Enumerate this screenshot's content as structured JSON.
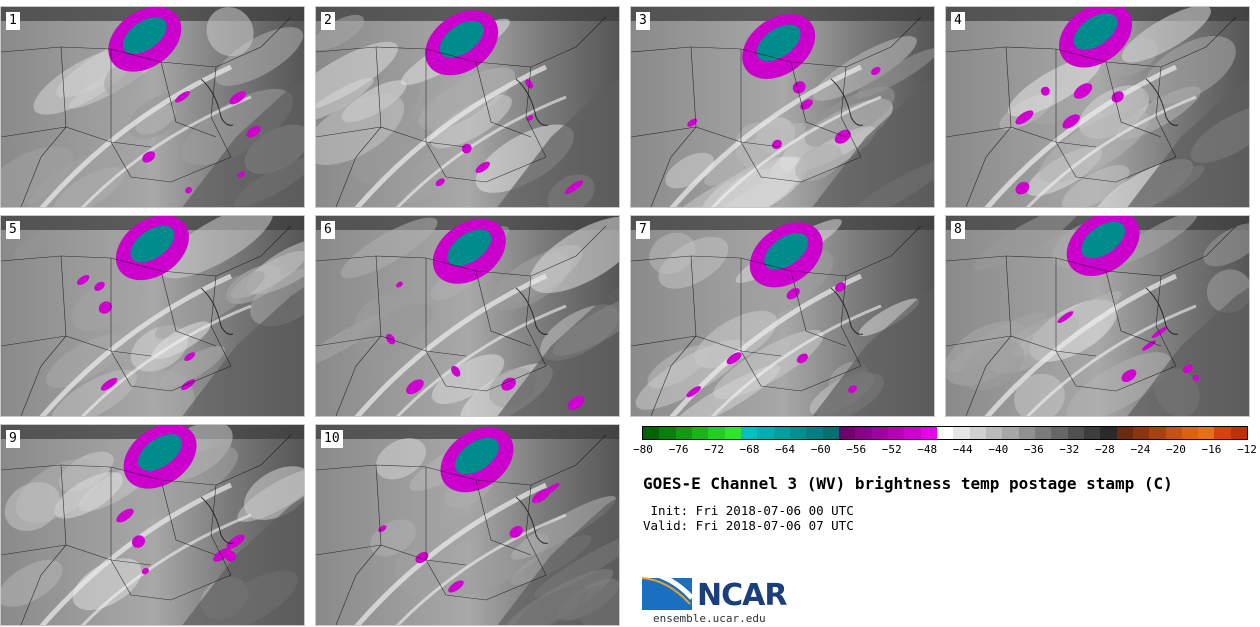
{
  "panels": [
    {
      "label": "1"
    },
    {
      "label": "2"
    },
    {
      "label": "3"
    },
    {
      "label": "4"
    },
    {
      "label": "5"
    },
    {
      "label": "6"
    },
    {
      "label": "7"
    },
    {
      "label": "8"
    },
    {
      "label": "9"
    },
    {
      "label": "10"
    }
  ],
  "colorbar": {
    "colors": [
      "#006400",
      "#087f08",
      "#109a10",
      "#18b518",
      "#20d020",
      "#28e828",
      "#00c0c0",
      "#00b0b0",
      "#00a0a0",
      "#009090",
      "#008080",
      "#007070",
      "#700070",
      "#880088",
      "#a000a0",
      "#b800b8",
      "#d000d0",
      "#e800e8",
      "#ffffff",
      "#e6e6e6",
      "#d0d0d0",
      "#bbbbbb",
      "#a6a6a6",
      "#909090",
      "#7b7b7b",
      "#666666",
      "#505050",
      "#3d3d3d",
      "#2a2a2a",
      "#6b2a10",
      "#8a3510",
      "#aa4010",
      "#c85010",
      "#e06010",
      "#e87010",
      "#d84010",
      "#c03008"
    ],
    "tick_labels": [
      "−80",
      "−76",
      "−72",
      "−68",
      "−64",
      "−60",
      "−56",
      "−52",
      "−48",
      "−44",
      "−40",
      "−36",
      "−32",
      "−28",
      "−24",
      "−20",
      "−16",
      "−12"
    ]
  },
  "title": "GOES-E Channel 3 (WV) brightness temp postage stamp (C)",
  "init_line": " Init: Fri 2018-07-06 00 UTC",
  "valid_line": "Valid: Fri 2018-07-06 07 UTC",
  "logo": {
    "text": "NCAR",
    "url": "ensemble.ucar.edu"
  }
}
